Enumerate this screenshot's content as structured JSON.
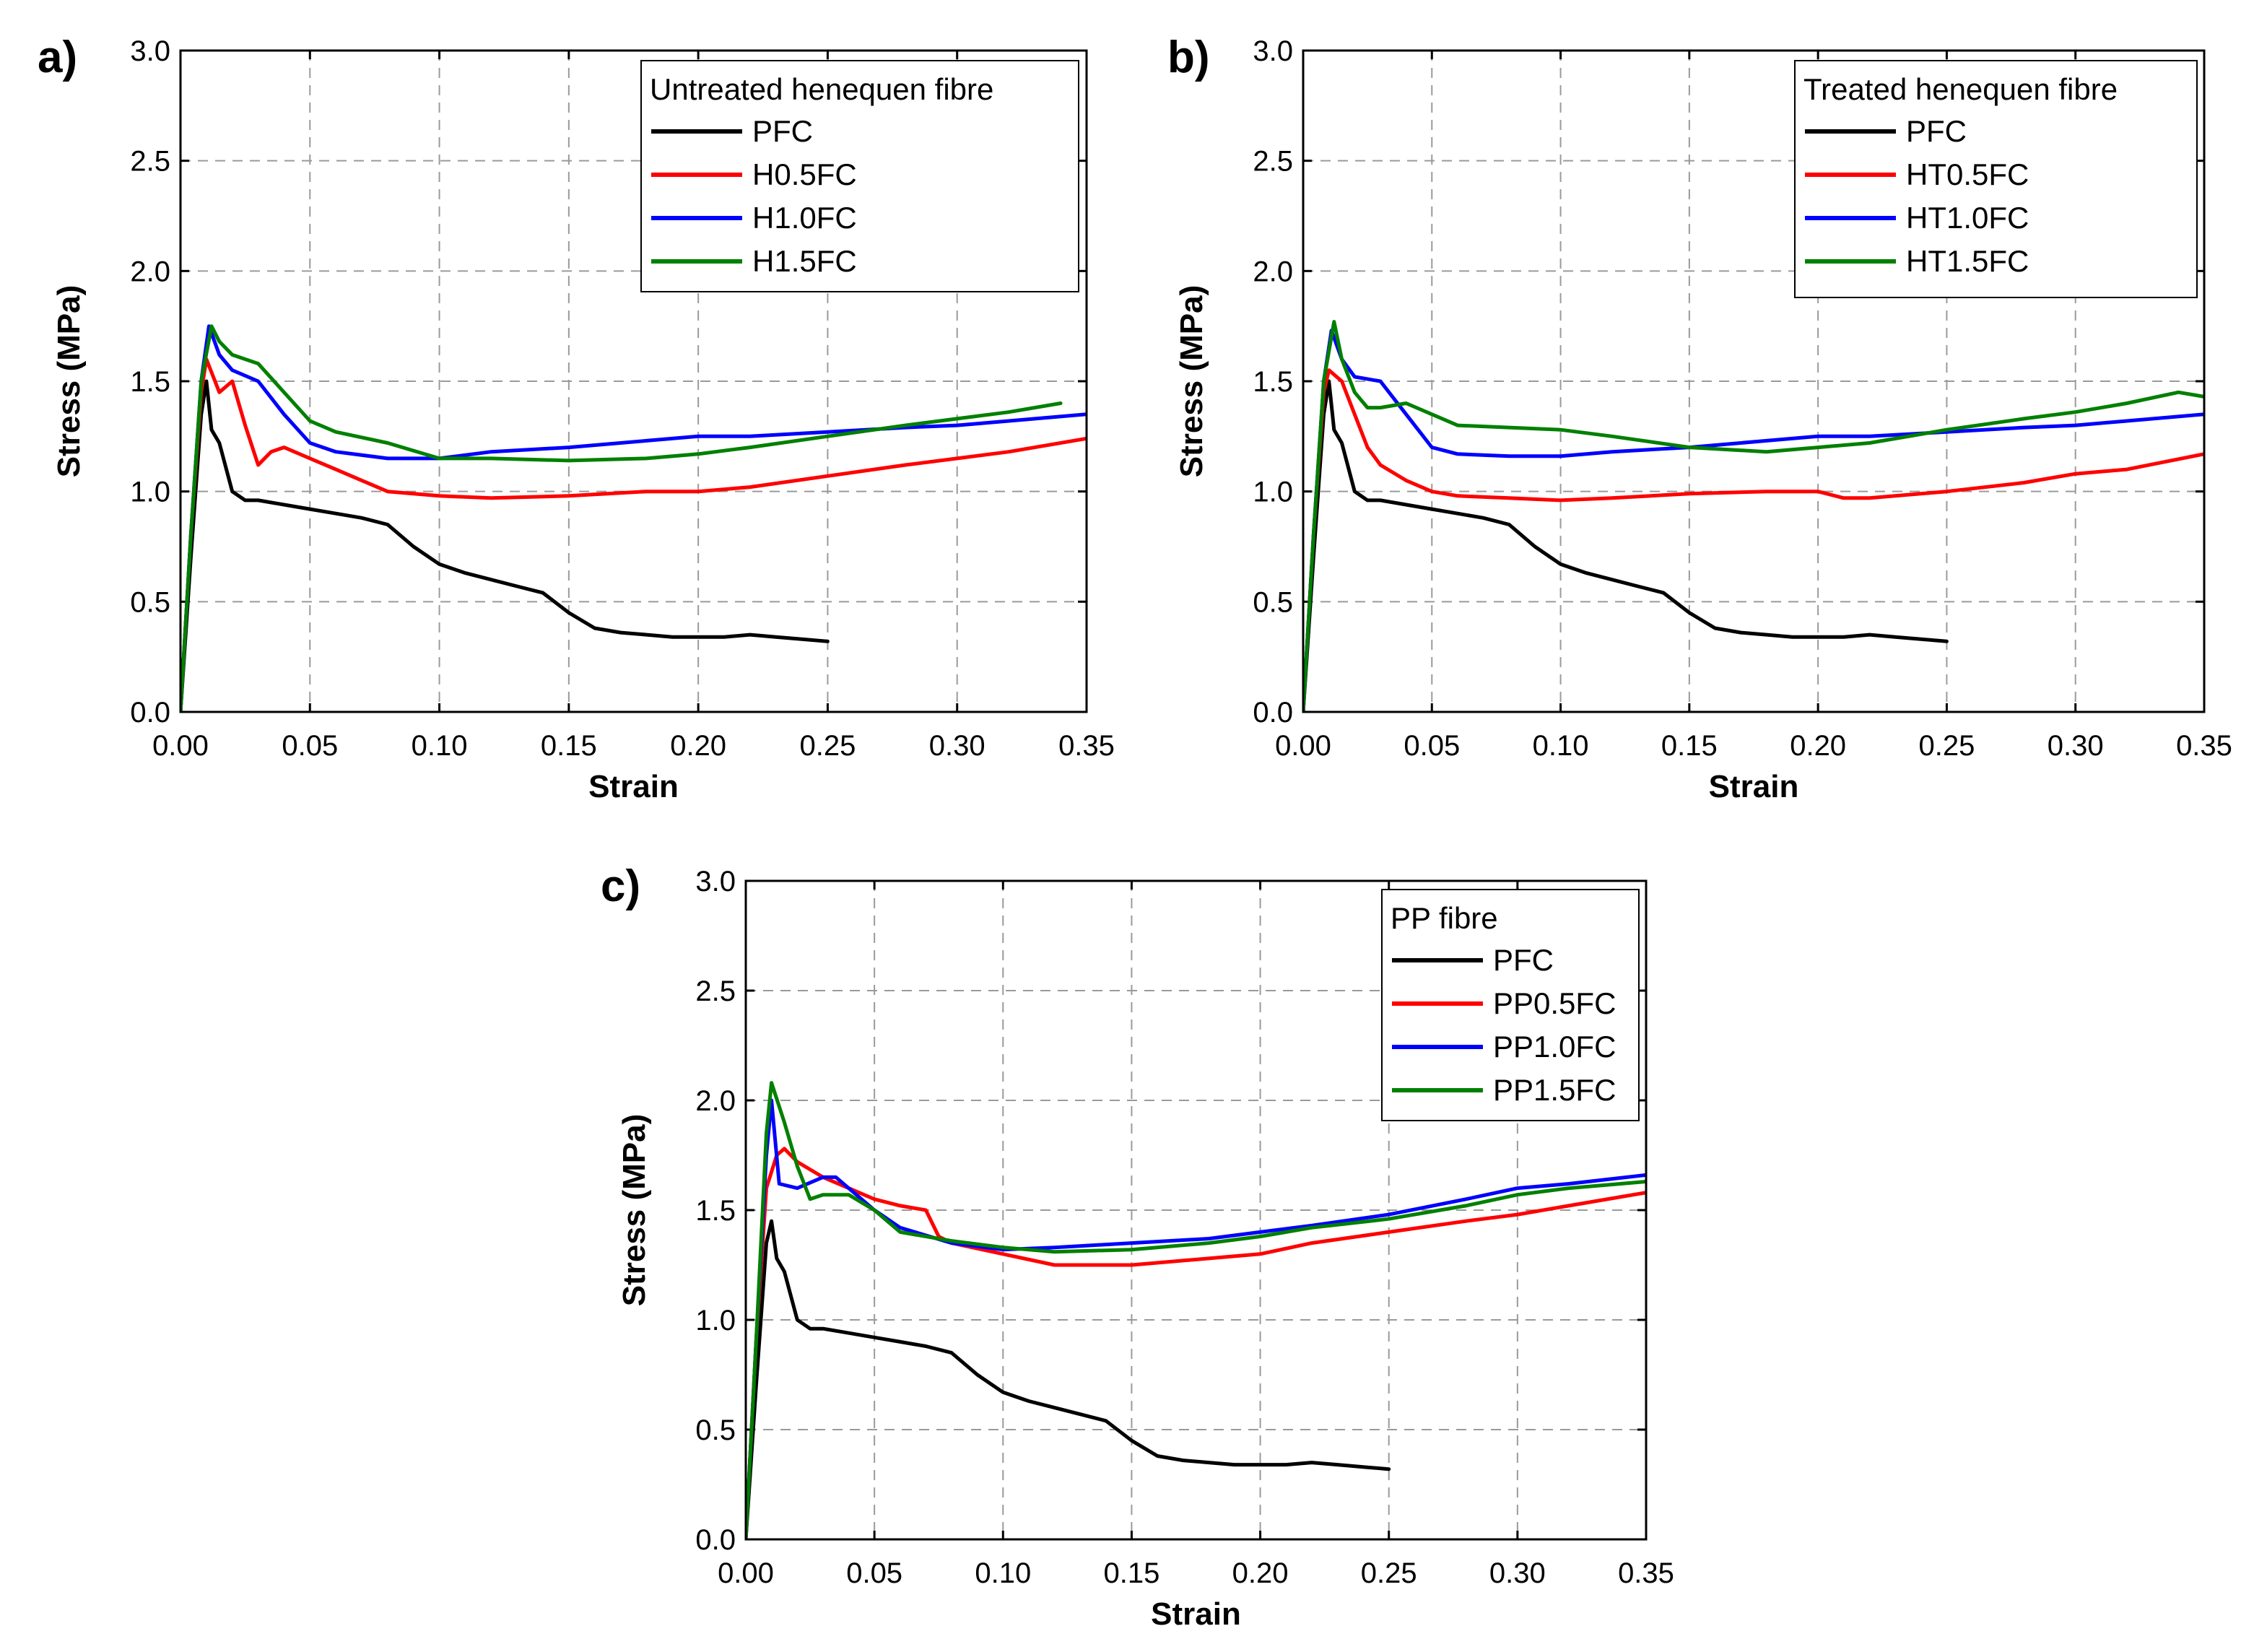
{
  "figure": {
    "panel_count": 3
  },
  "colors": {
    "PFC": "#000000",
    "0.5": "#ff0000",
    "1.0": "#0000ff",
    "1.5": "#008000"
  },
  "chart_data": [
    {
      "panel": "a)",
      "type": "line",
      "xlabel": "Strain",
      "ylabel": "Stress (MPa)",
      "xlim": [
        0,
        0.35
      ],
      "ylim": [
        0,
        3.0
      ],
      "xticks": [
        "0.00",
        "0.05",
        "0.10",
        "0.15",
        "0.20",
        "0.25",
        "0.30",
        "0.35"
      ],
      "yticks": [
        "0.0",
        "0.5",
        "1.0",
        "1.5",
        "2.0",
        "2.5",
        "3.0"
      ],
      "grid": true,
      "legend": {
        "title": "Untreated henequen fibre",
        "placement": "top-right"
      },
      "series": [
        {
          "name": "PFC",
          "color": "#000000",
          "x": [
            0,
            0.004,
            0.008,
            0.01,
            0.012,
            0.015,
            0.02,
            0.025,
            0.03,
            0.04,
            0.05,
            0.06,
            0.07,
            0.08,
            0.09,
            0.1,
            0.11,
            0.12,
            0.13,
            0.14,
            0.15,
            0.16,
            0.17,
            0.18,
            0.19,
            0.2,
            0.21,
            0.22,
            0.23,
            0.24,
            0.25
          ],
          "y": [
            0,
            0.7,
            1.35,
            1.5,
            1.28,
            1.22,
            1.0,
            0.96,
            0.96,
            0.94,
            0.92,
            0.9,
            0.88,
            0.85,
            0.75,
            0.67,
            0.63,
            0.6,
            0.57,
            0.54,
            0.45,
            0.38,
            0.36,
            0.35,
            0.34,
            0.34,
            0.34,
            0.35,
            0.34,
            0.33,
            0.32
          ]
        },
        {
          "name": "H0.5FC",
          "color": "#ff0000",
          "x": [
            0,
            0.004,
            0.008,
            0.01,
            0.015,
            0.02,
            0.025,
            0.03,
            0.035,
            0.04,
            0.05,
            0.06,
            0.07,
            0.08,
            0.1,
            0.12,
            0.15,
            0.18,
            0.2,
            0.22,
            0.25,
            0.28,
            0.3,
            0.32,
            0.35
          ],
          "y": [
            0,
            0.8,
            1.45,
            1.6,
            1.45,
            1.5,
            1.3,
            1.12,
            1.18,
            1.2,
            1.15,
            1.1,
            1.05,
            1.0,
            0.98,
            0.97,
            0.98,
            1.0,
            1.0,
            1.02,
            1.07,
            1.12,
            1.15,
            1.18,
            1.24
          ]
        },
        {
          "name": "H1.0FC",
          "color": "#0000ff",
          "x": [
            0,
            0.004,
            0.008,
            0.011,
            0.015,
            0.02,
            0.03,
            0.04,
            0.05,
            0.06,
            0.08,
            0.1,
            0.12,
            0.15,
            0.18,
            0.2,
            0.22,
            0.25,
            0.28,
            0.3,
            0.32,
            0.35
          ],
          "y": [
            0,
            0.8,
            1.5,
            1.75,
            1.62,
            1.55,
            1.5,
            1.35,
            1.22,
            1.18,
            1.15,
            1.15,
            1.18,
            1.2,
            1.23,
            1.25,
            1.25,
            1.27,
            1.29,
            1.3,
            1.32,
            1.35
          ]
        },
        {
          "name": "H1.5FC",
          "color": "#008000",
          "x": [
            0,
            0.004,
            0.008,
            0.012,
            0.015,
            0.02,
            0.03,
            0.04,
            0.05,
            0.06,
            0.08,
            0.1,
            0.12,
            0.15,
            0.18,
            0.2,
            0.22,
            0.25,
            0.28,
            0.3,
            0.32,
            0.34
          ],
          "y": [
            0,
            0.8,
            1.5,
            1.75,
            1.68,
            1.62,
            1.58,
            1.45,
            1.32,
            1.27,
            1.22,
            1.15,
            1.15,
            1.14,
            1.15,
            1.17,
            1.2,
            1.25,
            1.3,
            1.33,
            1.36,
            1.4
          ]
        }
      ]
    },
    {
      "panel": "b)",
      "type": "line",
      "xlabel": "Strain",
      "ylabel": "Stress (MPa)",
      "xlim": [
        0,
        0.35
      ],
      "ylim": [
        0,
        3.0
      ],
      "xticks": [
        "0.00",
        "0.05",
        "0.10",
        "0.15",
        "0.20",
        "0.25",
        "0.30",
        "0.35"
      ],
      "yticks": [
        "0.0",
        "0.5",
        "1.0",
        "1.5",
        "2.0",
        "2.5",
        "3.0"
      ],
      "grid": true,
      "legend": {
        "title": "Treated henequen fibre",
        "placement": "top-right"
      },
      "series": [
        {
          "name": "PFC",
          "color": "#000000",
          "x": [
            0,
            0.004,
            0.008,
            0.01,
            0.012,
            0.015,
            0.02,
            0.025,
            0.03,
            0.04,
            0.05,
            0.06,
            0.07,
            0.08,
            0.09,
            0.1,
            0.11,
            0.12,
            0.13,
            0.14,
            0.15,
            0.16,
            0.17,
            0.18,
            0.19,
            0.2,
            0.21,
            0.22,
            0.23,
            0.24,
            0.25
          ],
          "y": [
            0,
            0.7,
            1.35,
            1.5,
            1.28,
            1.22,
            1.0,
            0.96,
            0.96,
            0.94,
            0.92,
            0.9,
            0.88,
            0.85,
            0.75,
            0.67,
            0.63,
            0.6,
            0.57,
            0.54,
            0.45,
            0.38,
            0.36,
            0.35,
            0.34,
            0.34,
            0.34,
            0.35,
            0.34,
            0.33,
            0.32
          ]
        },
        {
          "name": "HT0.5FC",
          "color": "#ff0000",
          "x": [
            0,
            0.004,
            0.008,
            0.01,
            0.015,
            0.02,
            0.025,
            0.03,
            0.04,
            0.05,
            0.06,
            0.08,
            0.1,
            0.12,
            0.15,
            0.18,
            0.2,
            0.21,
            0.22,
            0.25,
            0.28,
            0.3,
            0.32,
            0.35
          ],
          "y": [
            0,
            0.8,
            1.45,
            1.55,
            1.5,
            1.35,
            1.2,
            1.12,
            1.05,
            1.0,
            0.98,
            0.97,
            0.96,
            0.97,
            0.99,
            1.0,
            1.0,
            0.97,
            0.97,
            1.0,
            1.04,
            1.08,
            1.1,
            1.17
          ]
        },
        {
          "name": "HT1.0FC",
          "color": "#0000ff",
          "x": [
            0,
            0.004,
            0.008,
            0.011,
            0.015,
            0.02,
            0.03,
            0.04,
            0.05,
            0.06,
            0.08,
            0.1,
            0.12,
            0.15,
            0.18,
            0.2,
            0.22,
            0.25,
            0.28,
            0.3,
            0.32,
            0.35
          ],
          "y": [
            0,
            0.8,
            1.5,
            1.73,
            1.6,
            1.52,
            1.5,
            1.35,
            1.2,
            1.17,
            1.16,
            1.16,
            1.18,
            1.2,
            1.23,
            1.25,
            1.25,
            1.27,
            1.29,
            1.3,
            1.32,
            1.35
          ]
        },
        {
          "name": "HT1.5FC",
          "color": "#008000",
          "x": [
            0,
            0.004,
            0.008,
            0.012,
            0.015,
            0.02,
            0.025,
            0.03,
            0.04,
            0.05,
            0.06,
            0.08,
            0.1,
            0.12,
            0.15,
            0.18,
            0.2,
            0.22,
            0.25,
            0.28,
            0.3,
            0.32,
            0.34,
            0.35
          ],
          "y": [
            0,
            0.8,
            1.5,
            1.77,
            1.6,
            1.45,
            1.38,
            1.38,
            1.4,
            1.35,
            1.3,
            1.29,
            1.28,
            1.25,
            1.2,
            1.18,
            1.2,
            1.22,
            1.28,
            1.33,
            1.36,
            1.4,
            1.45,
            1.43
          ]
        }
      ]
    },
    {
      "panel": "c)",
      "type": "line",
      "xlabel": "Strain",
      "ylabel": "Stress (MPa)",
      "xlim": [
        0,
        0.35
      ],
      "ylim": [
        0,
        3.0
      ],
      "xticks": [
        "0.00",
        "0.05",
        "0.10",
        "0.15",
        "0.20",
        "0.25",
        "0.30",
        "0.35"
      ],
      "yticks": [
        "0.0",
        "0.5",
        "1.0",
        "1.5",
        "2.0",
        "2.5",
        "3.0"
      ],
      "grid": true,
      "legend": {
        "title": "PP fibre",
        "placement": "top-right"
      },
      "series": [
        {
          "name": "PFC",
          "color": "#000000",
          "x": [
            0,
            0.004,
            0.008,
            0.01,
            0.012,
            0.015,
            0.02,
            0.025,
            0.03,
            0.04,
            0.05,
            0.06,
            0.07,
            0.08,
            0.09,
            0.1,
            0.11,
            0.12,
            0.13,
            0.14,
            0.15,
            0.16,
            0.17,
            0.18,
            0.19,
            0.2,
            0.21,
            0.22,
            0.23,
            0.24,
            0.25
          ],
          "y": [
            0,
            0.7,
            1.35,
            1.45,
            1.28,
            1.22,
            1.0,
            0.96,
            0.96,
            0.94,
            0.92,
            0.9,
            0.88,
            0.85,
            0.75,
            0.67,
            0.63,
            0.6,
            0.57,
            0.54,
            0.45,
            0.38,
            0.36,
            0.35,
            0.34,
            0.34,
            0.34,
            0.35,
            0.34,
            0.33,
            0.32
          ]
        },
        {
          "name": "PP0.5FC",
          "color": "#ff0000",
          "x": [
            0,
            0.004,
            0.008,
            0.012,
            0.015,
            0.02,
            0.03,
            0.04,
            0.05,
            0.06,
            0.07,
            0.075,
            0.08,
            0.1,
            0.12,
            0.15,
            0.18,
            0.2,
            0.22,
            0.25,
            0.28,
            0.3,
            0.32,
            0.35
          ],
          "y": [
            0,
            0.9,
            1.6,
            1.75,
            1.78,
            1.72,
            1.65,
            1.6,
            1.55,
            1.52,
            1.5,
            1.38,
            1.35,
            1.3,
            1.25,
            1.25,
            1.28,
            1.3,
            1.35,
            1.4,
            1.45,
            1.48,
            1.52,
            1.58
          ]
        },
        {
          "name": "PP1.0FC",
          "color": "#0000ff",
          "x": [
            0,
            0.004,
            0.008,
            0.01,
            0.013,
            0.02,
            0.03,
            0.035,
            0.04,
            0.05,
            0.06,
            0.08,
            0.1,
            0.12,
            0.15,
            0.18,
            0.2,
            0.22,
            0.25,
            0.28,
            0.3,
            0.32,
            0.35
          ],
          "y": [
            0,
            0.9,
            1.75,
            2.0,
            1.62,
            1.6,
            1.65,
            1.65,
            1.6,
            1.5,
            1.42,
            1.35,
            1.32,
            1.33,
            1.35,
            1.37,
            1.4,
            1.43,
            1.48,
            1.55,
            1.6,
            1.62,
            1.66
          ]
        },
        {
          "name": "PP1.5FC",
          "color": "#008000",
          "x": [
            0,
            0.004,
            0.008,
            0.01,
            0.015,
            0.02,
            0.025,
            0.03,
            0.04,
            0.05,
            0.06,
            0.08,
            0.1,
            0.12,
            0.15,
            0.18,
            0.2,
            0.22,
            0.25,
            0.28,
            0.3,
            0.32,
            0.35
          ],
          "y": [
            0,
            0.9,
            1.85,
            2.08,
            1.9,
            1.7,
            1.55,
            1.57,
            1.57,
            1.5,
            1.4,
            1.36,
            1.33,
            1.31,
            1.32,
            1.35,
            1.38,
            1.42,
            1.46,
            1.52,
            1.57,
            1.6,
            1.63
          ]
        }
      ]
    }
  ]
}
